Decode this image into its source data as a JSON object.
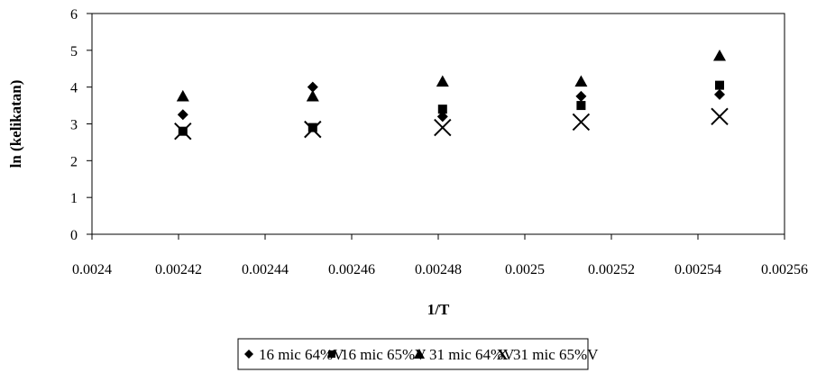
{
  "chart_data": {
    "type": "scatter",
    "title": "",
    "xlabel": "1/T",
    "ylabel": "ln (kelikatan)",
    "xlim": [
      0.0024,
      0.00256
    ],
    "ylim": [
      0,
      6
    ],
    "x_ticks": [
      "0.0024",
      "0.00242",
      "0.00244",
      "0.00246",
      "0.00248",
      "0.0025",
      "0.00252",
      "0.00254",
      "0.00256"
    ],
    "y_ticks": [
      "0",
      "1",
      "2",
      "3",
      "4",
      "5",
      "6"
    ],
    "grid": false,
    "legend_position": "bottom",
    "series": [
      {
        "name": "16 mic 64%V",
        "marker": "diamond",
        "points": [
          {
            "x": 0.002421,
            "y": 3.25
          },
          {
            "x": 0.002451,
            "y": 4.0
          },
          {
            "x": 0.002481,
            "y": 3.2
          },
          {
            "x": 0.002513,
            "y": 3.75
          },
          {
            "x": 0.002545,
            "y": 3.8
          }
        ]
      },
      {
        "name": "16 mic 65%V",
        "marker": "square",
        "points": [
          {
            "x": 0.002421,
            "y": 2.8
          },
          {
            "x": 0.002451,
            "y": 2.9
          },
          {
            "x": 0.002481,
            "y": 3.4
          },
          {
            "x": 0.002513,
            "y": 3.5
          },
          {
            "x": 0.002545,
            "y": 4.05
          }
        ]
      },
      {
        "name": "31 mic 64%V",
        "marker": "triangle",
        "points": [
          {
            "x": 0.002421,
            "y": 3.75
          },
          {
            "x": 0.002451,
            "y": 3.75
          },
          {
            "x": 0.002481,
            "y": 4.15
          },
          {
            "x": 0.002513,
            "y": 4.15
          },
          {
            "x": 0.002545,
            "y": 4.85
          }
        ]
      },
      {
        "name": "31 mic 65%V",
        "marker": "x",
        "points": [
          {
            "x": 0.002421,
            "y": 2.8
          },
          {
            "x": 0.002451,
            "y": 2.85
          },
          {
            "x": 0.002481,
            "y": 2.9
          },
          {
            "x": 0.002513,
            "y": 3.05
          },
          {
            "x": 0.002545,
            "y": 3.2
          }
        ]
      }
    ],
    "colors": {
      "marker": "#000000",
      "axis": "#000000",
      "background": "#ffffff"
    }
  }
}
